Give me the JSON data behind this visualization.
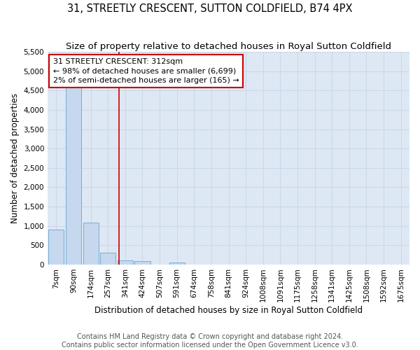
{
  "title": "31, STREETLY CRESCENT, SUTTON COLDFIELD, B74 4PX",
  "subtitle": "Size of property relative to detached houses in Royal Sutton Coldfield",
  "xlabel": "Distribution of detached houses by size in Royal Sutton Coldfield",
  "ylabel": "Number of detached properties",
  "footer_line1": "Contains HM Land Registry data © Crown copyright and database right 2024.",
  "footer_line2": "Contains public sector information licensed under the Open Government Licence v3.0.",
  "bin_labels": [
    "7sqm",
    "90sqm",
    "174sqm",
    "257sqm",
    "341sqm",
    "424sqm",
    "507sqm",
    "591sqm",
    "674sqm",
    "758sqm",
    "841sqm",
    "924sqm",
    "1008sqm",
    "1091sqm",
    "1175sqm",
    "1258sqm",
    "1341sqm",
    "1425sqm",
    "1508sqm",
    "1592sqm",
    "1675sqm"
  ],
  "bar_values": [
    900,
    4600,
    1075,
    300,
    100,
    80,
    0,
    60,
    0,
    0,
    0,
    0,
    0,
    0,
    0,
    0,
    0,
    0,
    0,
    0,
    0
  ],
  "bar_color": "#c5d8ee",
  "bar_edge_color": "#7aadd4",
  "grid_color": "#ccd8e8",
  "background_color": "#dde8f4",
  "annotation_text": "31 STREETLY CRESCENT: 312sqm\n← 98% of detached houses are smaller (6,699)\n2% of semi-detached houses are larger (165) →",
  "annotation_box_color": "#ffffff",
  "annotation_border_color": "#cc0000",
  "ylim": [
    0,
    5500
  ],
  "yticks": [
    0,
    500,
    1000,
    1500,
    2000,
    2500,
    3000,
    3500,
    4000,
    4500,
    5000,
    5500
  ],
  "title_fontsize": 10.5,
  "subtitle_fontsize": 9.5,
  "axis_label_fontsize": 8.5,
  "tick_fontsize": 7.5,
  "footer_fontsize": 7
}
